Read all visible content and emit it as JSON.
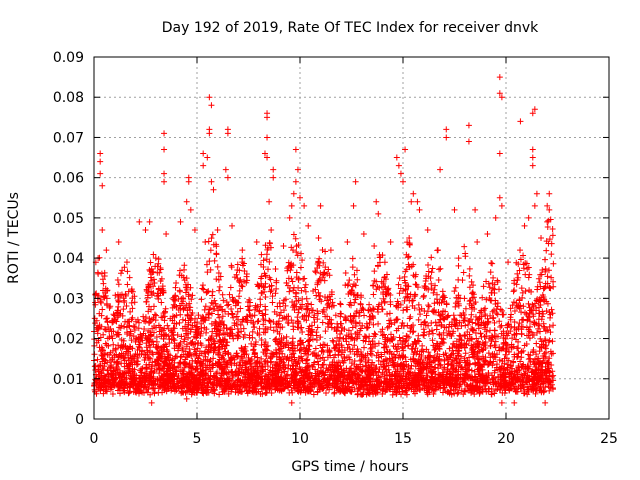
{
  "chart_data": {
    "type": "scatter",
    "title": "Day 192 of 2019, Rate Of TEC Index for receiver dnvk",
    "xlabel": "GPS time / hours",
    "ylabel": "ROTI / TECUs",
    "xlim": [
      0,
      25
    ],
    "ylim": [
      0,
      0.09
    ],
    "xticks": [
      0,
      5,
      10,
      15,
      20,
      25
    ],
    "yticks": [
      0,
      0.01,
      0.02,
      0.03,
      0.04,
      0.05,
      0.06,
      0.07,
      0.08,
      0.09
    ],
    "xtick_labels": [
      "0",
      "5",
      "10",
      "15",
      "20",
      "25"
    ],
    "ytick_labels": [
      "0",
      "0.01",
      "0.02",
      "0.03",
      "0.04",
      "0.05",
      "0.06",
      "0.07",
      "0.08",
      "0.09"
    ],
    "grid": true,
    "marker": "plus",
    "marker_color": "#ff0000",
    "series": [
      {
        "points": [
          [
            0.3,
            0.066
          ],
          [
            0.3,
            0.064
          ],
          [
            0.3,
            0.061
          ],
          [
            0.4,
            0.058
          ],
          [
            0.4,
            0.047
          ],
          [
            3.4,
            0.071
          ],
          [
            3.4,
            0.067
          ],
          [
            3.4,
            0.061
          ],
          [
            3.4,
            0.059
          ],
          [
            5.6,
            0.08
          ],
          [
            5.7,
            0.078
          ],
          [
            5.6,
            0.072
          ],
          [
            5.6,
            0.071
          ],
          [
            5.5,
            0.065
          ],
          [
            5.3,
            0.066
          ],
          [
            5.3,
            0.063
          ],
          [
            5.7,
            0.059
          ],
          [
            5.8,
            0.057
          ],
          [
            6.5,
            0.072
          ],
          [
            6.5,
            0.071
          ],
          [
            6.4,
            0.062
          ],
          [
            6.5,
            0.06
          ],
          [
            4.6,
            0.06
          ],
          [
            4.6,
            0.059
          ],
          [
            4.5,
            0.054
          ],
          [
            4.7,
            0.052
          ],
          [
            8.4,
            0.076
          ],
          [
            8.4,
            0.075
          ],
          [
            8.4,
            0.07
          ],
          [
            8.3,
            0.066
          ],
          [
            8.4,
            0.065
          ],
          [
            8.7,
            0.062
          ],
          [
            8.7,
            0.06
          ],
          [
            8.5,
            0.054
          ],
          [
            9.8,
            0.067
          ],
          [
            9.9,
            0.062
          ],
          [
            9.8,
            0.059
          ],
          [
            9.7,
            0.056
          ],
          [
            10.0,
            0.055
          ],
          [
            9.6,
            0.053
          ],
          [
            10.2,
            0.053
          ],
          [
            9.5,
            0.05
          ],
          [
            11.0,
            0.053
          ],
          [
            12.7,
            0.059
          ],
          [
            13.7,
            0.054
          ],
          [
            13.8,
            0.051
          ],
          [
            12.6,
            0.053
          ],
          [
            14.7,
            0.065
          ],
          [
            14.8,
            0.063
          ],
          [
            14.9,
            0.061
          ],
          [
            15.1,
            0.067
          ],
          [
            15.0,
            0.059
          ],
          [
            15.5,
            0.056
          ],
          [
            15.7,
            0.054
          ],
          [
            15.8,
            0.052
          ],
          [
            15.4,
            0.054
          ],
          [
            16.8,
            0.062
          ],
          [
            17.1,
            0.072
          ],
          [
            17.1,
            0.07
          ],
          [
            18.2,
            0.073
          ],
          [
            18.2,
            0.069
          ],
          [
            18.5,
            0.052
          ],
          [
            17.5,
            0.052
          ],
          [
            19.7,
            0.085
          ],
          [
            19.7,
            0.081
          ],
          [
            19.8,
            0.08
          ],
          [
            19.7,
            0.066
          ],
          [
            19.7,
            0.055
          ],
          [
            19.8,
            0.053
          ],
          [
            19.5,
            0.05
          ],
          [
            20.7,
            0.074
          ],
          [
            21.4,
            0.077
          ],
          [
            21.3,
            0.076
          ],
          [
            21.3,
            0.067
          ],
          [
            21.3,
            0.065
          ],
          [
            21.3,
            0.063
          ],
          [
            21.5,
            0.056
          ],
          [
            21.4,
            0.053
          ],
          [
            22.1,
            0.056
          ],
          [
            22.0,
            0.053
          ],
          [
            22.1,
            0.052
          ],
          [
            22.0,
            0.049
          ],
          [
            21.1,
            0.05
          ],
          [
            0.2,
            0.04
          ],
          [
            0.6,
            0.042
          ],
          [
            1.2,
            0.044
          ],
          [
            1.6,
            0.039
          ],
          [
            2.2,
            0.049
          ],
          [
            2.5,
            0.047
          ],
          [
            2.7,
            0.049
          ],
          [
            3.0,
            0.04
          ],
          [
            3.5,
            0.046
          ],
          [
            4.2,
            0.049
          ],
          [
            4.9,
            0.047
          ],
          [
            5.4,
            0.044
          ],
          [
            6.0,
            0.047
          ],
          [
            6.7,
            0.048
          ],
          [
            7.2,
            0.042
          ],
          [
            7.9,
            0.044
          ],
          [
            8.6,
            0.047
          ],
          [
            9.2,
            0.043
          ],
          [
            10.4,
            0.048
          ],
          [
            10.9,
            0.045
          ],
          [
            11.5,
            0.042
          ],
          [
            12.3,
            0.044
          ],
          [
            13.1,
            0.046
          ],
          [
            13.6,
            0.043
          ],
          [
            14.4,
            0.044
          ],
          [
            15.3,
            0.045
          ],
          [
            16.2,
            0.047
          ],
          [
            16.7,
            0.042
          ],
          [
            17.7,
            0.04
          ],
          [
            18.6,
            0.044
          ],
          [
            19.1,
            0.046
          ],
          [
            20.1,
            0.039
          ],
          [
            20.9,
            0.048
          ],
          [
            21.7,
            0.045
          ],
          [
            22.2,
            0.041
          ],
          [
            2.8,
            0.004
          ],
          [
            4.5,
            0.005
          ],
          [
            9.6,
            0.004
          ],
          [
            14.5,
            0.006
          ],
          [
            19.8,
            0.004
          ],
          [
            20.4,
            0.004
          ],
          [
            21.9,
            0.004
          ]
        ]
      }
    ],
    "dense_band": {
      "x_range": [
        0,
        22.3
      ],
      "y_typical_range": [
        0.005,
        0.035
      ],
      "activity_profile": [
        [
          0.0,
          0.028
        ],
        [
          1.0,
          0.03
        ],
        [
          2.0,
          0.025
        ],
        [
          3.0,
          0.03
        ],
        [
          4.0,
          0.026
        ],
        [
          5.0,
          0.028
        ],
        [
          6.0,
          0.034
        ],
        [
          7.0,
          0.03
        ],
        [
          8.0,
          0.031
        ],
        [
          9.0,
          0.032
        ],
        [
          10.0,
          0.033
        ],
        [
          11.0,
          0.03
        ],
        [
          12.0,
          0.028
        ],
        [
          13.0,
          0.028
        ],
        [
          14.0,
          0.03
        ],
        [
          15.0,
          0.03
        ],
        [
          16.0,
          0.034
        ],
        [
          17.0,
          0.027
        ],
        [
          18.0,
          0.03
        ],
        [
          19.0,
          0.028
        ],
        [
          20.0,
          0.025
        ],
        [
          21.0,
          0.032
        ],
        [
          22.0,
          0.036
        ]
      ]
    }
  }
}
